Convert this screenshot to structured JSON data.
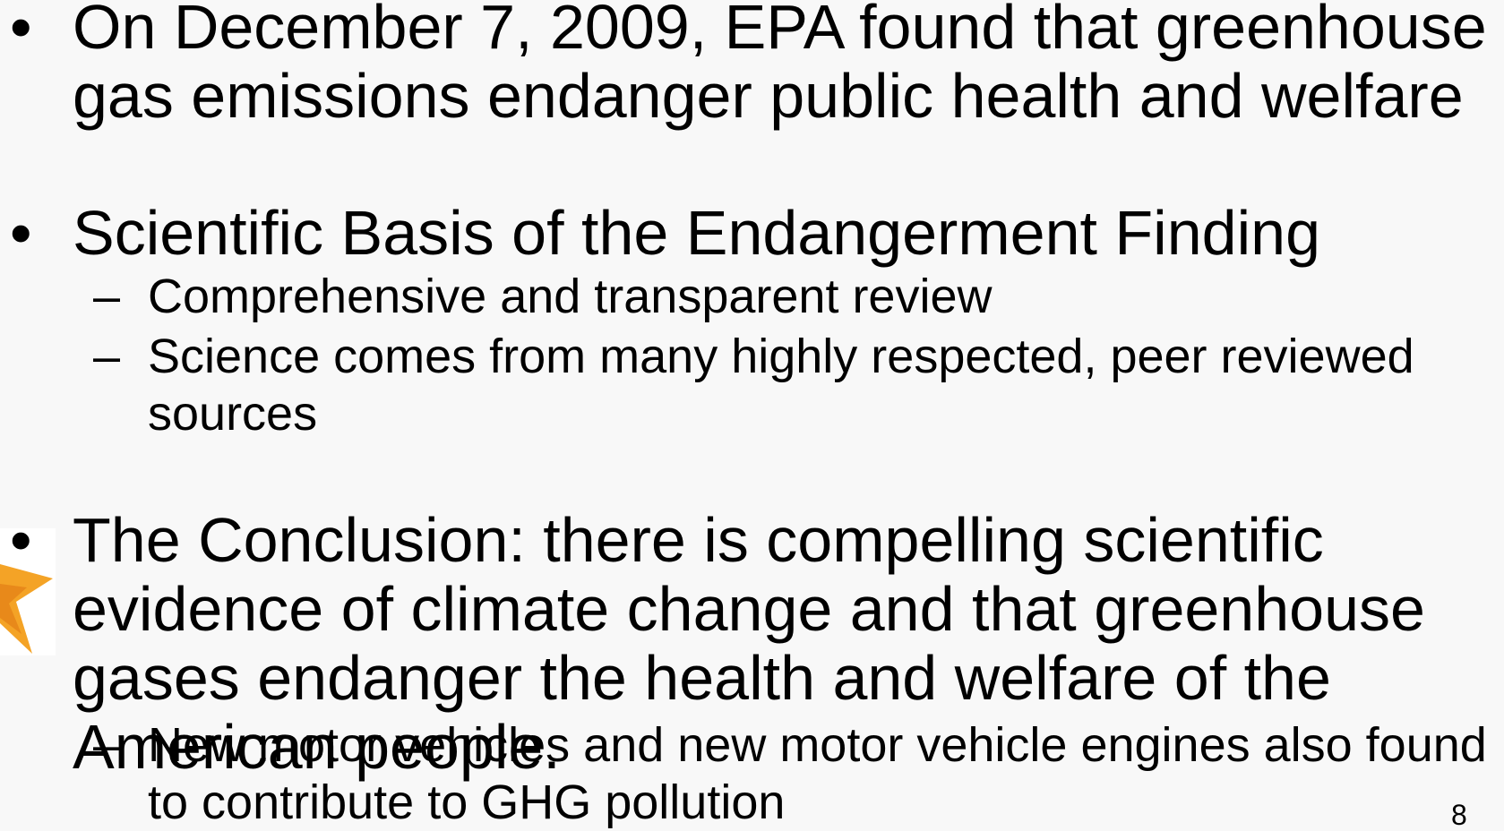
{
  "bullets": [
    {
      "text": "On December 7, 2009, EPA found that greenhouse gas emissions endanger public health and welfare"
    },
    {
      "text": "Scientific Basis of the Endangerment Finding",
      "subitems": [
        "Comprehensive and transparent review",
        "Science comes from many highly respected, peer reviewed sources"
      ]
    },
    {
      "text": "The Conclusion: there is compelling scientific evidence of climate change and that greenhouse gases endanger the health and welfare of the American people.",
      "subitems": [
        "New motor vehicles and new motor vehicle engines also found to contribute to GHG pollution"
      ]
    }
  ],
  "page_number": "8"
}
